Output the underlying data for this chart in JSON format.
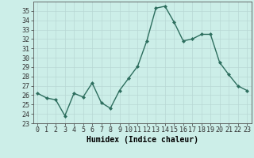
{
  "x": [
    0,
    1,
    2,
    3,
    4,
    5,
    6,
    7,
    8,
    9,
    10,
    11,
    12,
    13,
    14,
    15,
    16,
    17,
    18,
    19,
    20,
    21,
    22,
    23
  ],
  "y": [
    26.2,
    25.7,
    25.5,
    23.8,
    26.2,
    25.8,
    27.3,
    25.2,
    24.6,
    26.5,
    27.8,
    29.1,
    31.8,
    35.3,
    35.5,
    33.8,
    31.8,
    32.0,
    32.5,
    32.5,
    29.5,
    28.2,
    27.0,
    26.5
  ],
  "line_color": "#2d6e5e",
  "marker": "D",
  "marker_size": 2.0,
  "linewidth": 1.0,
  "bg_color": "#cceee8",
  "grid_color_major": "#b8d8d4",
  "grid_color_minor": "#d4ecea",
  "xlabel": "Humidex (Indice chaleur)",
  "ylim": [
    23,
    36
  ],
  "yticks": [
    23,
    24,
    25,
    26,
    27,
    28,
    29,
    30,
    31,
    32,
    33,
    34,
    35
  ],
  "xticks": [
    0,
    1,
    2,
    3,
    4,
    5,
    6,
    7,
    8,
    9,
    10,
    11,
    12,
    13,
    14,
    15,
    16,
    17,
    18,
    19,
    20,
    21,
    22,
    23
  ],
  "xlim": [
    -0.5,
    23.5
  ],
  "tick_fontsize": 6.0,
  "xlabel_fontsize": 7.0
}
